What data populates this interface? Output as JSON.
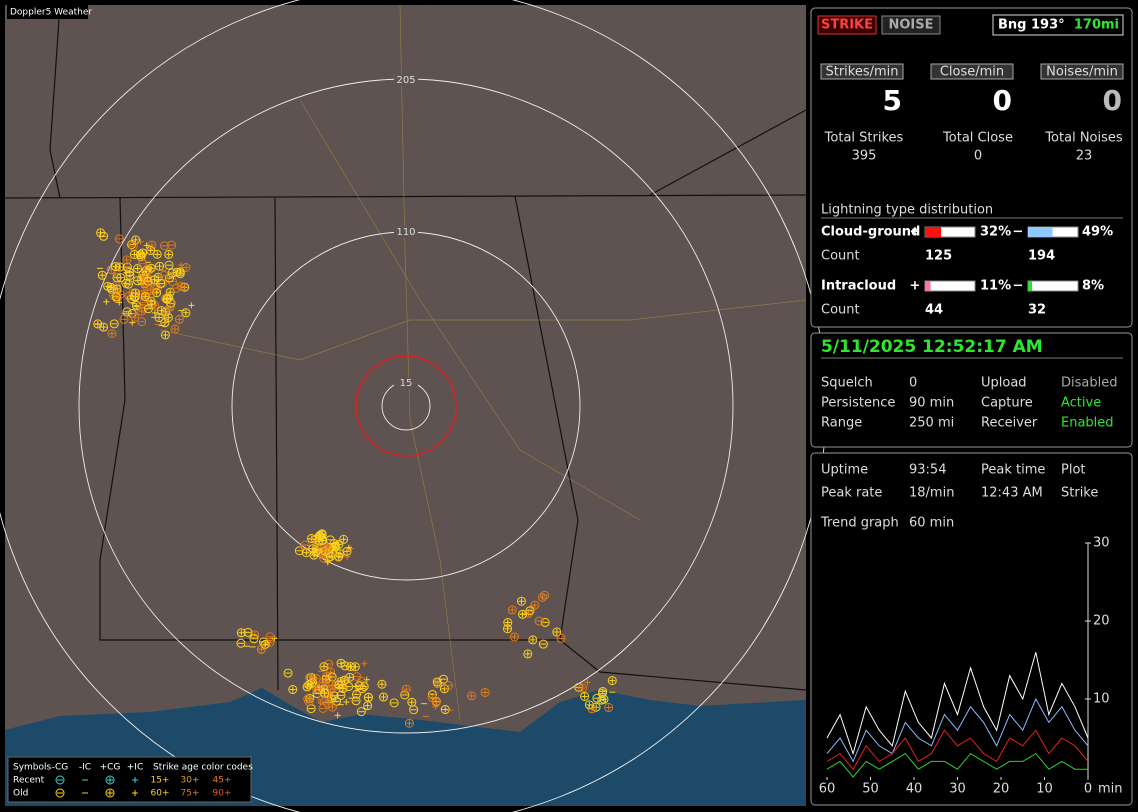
{
  "map": {
    "title": "Doppler5 Weather",
    "range_rings": [
      "205",
      "110",
      "15"
    ],
    "legend": {
      "symbols_label": "Symbols",
      "types": [
        "-CG",
        "-IC",
        "+CG",
        "+IC"
      ],
      "age_label": "Strike age color codes",
      "rows": [
        {
          "name": "Recent",
          "ages": [
            "15+",
            "30+",
            "45+"
          ]
        },
        {
          "name": "Old",
          "ages": [
            "60+",
            "75+",
            "90+"
          ]
        }
      ]
    }
  },
  "status": {
    "strike_button": "STRIKE",
    "noise_button": "NOISE",
    "bearing": "Bng 193°",
    "distance": "170mi",
    "rates": [
      {
        "label": "Strikes/min",
        "value": 5,
        "total_label": "Total Strikes",
        "total": 395
      },
      {
        "label": "Close/min",
        "value": 0,
        "total_label": "Total Close",
        "total": 0
      },
      {
        "label": "Noises/min",
        "value": 0,
        "total_label": "Total Noises",
        "total": 23
      }
    ],
    "distribution": {
      "title": "Lightning type distribution",
      "plus": "+",
      "minus": "−",
      "count_label": "Count",
      "rows": [
        {
          "name": "Cloud-ground",
          "pos": {
            "value": 32,
            "label": "32%"
          },
          "neg": {
            "value": 49,
            "label": "49%"
          },
          "pos_count": 125,
          "neg_count": 194
        },
        {
          "name": "Intracloud",
          "pos": {
            "value": 11,
            "label": "11%"
          },
          "neg": {
            "value": 8,
            "label": "8%"
          },
          "pos_count": 44,
          "neg_count": 32
        }
      ]
    }
  },
  "clock": {
    "datetime": "5/11/2025 12:52:17 AM",
    "settings": [
      {
        "label": "Squelch",
        "value": 0
      },
      {
        "label": "Persistence",
        "value": "90 min"
      },
      {
        "label": "Range",
        "value": "250 mi"
      }
    ],
    "states": [
      {
        "label": "Upload",
        "value": "Disabled"
      },
      {
        "label": "Capture",
        "value": "Active"
      },
      {
        "label": "Receiver",
        "value": "Enabled"
      }
    ]
  },
  "stats": {
    "uptime_label": "Uptime",
    "uptime": "93:54",
    "peak_time_label": "Peak time",
    "peak_time": "12:43 AM",
    "plot_label": "Plot",
    "peak_rate_label": "Peak rate",
    "peak_rate": "18/min",
    "plot": "Strike",
    "trend_label": "Trend graph",
    "trend_span": "60 min"
  },
  "trend": {
    "type": "line",
    "xlabel": "min",
    "xlim": [
      60,
      0
    ],
    "ylim": [
      0,
      30
    ],
    "yticks": [
      10,
      20,
      30
    ],
    "xticks": [
      60,
      50,
      40,
      30,
      20,
      10,
      0
    ],
    "x": [
      60,
      57,
      54,
      51,
      48,
      45,
      42,
      39,
      36,
      33,
      30,
      27,
      24,
      21,
      18,
      15,
      12,
      9,
      6,
      3,
      0
    ],
    "series": [
      {
        "color": "#ffffff",
        "values": [
          5,
          8,
          3,
          9,
          6,
          4,
          11,
          7,
          5,
          12,
          8,
          14,
          9,
          6,
          13,
          10,
          16,
          8,
          12,
          9,
          5
        ]
      },
      {
        "color": "#8fb8ff",
        "values": [
          3,
          5,
          2,
          6,
          4,
          3,
          7,
          5,
          4,
          8,
          6,
          9,
          7,
          4,
          8,
          6,
          10,
          7,
          9,
          6,
          4
        ]
      },
      {
        "color": "#e02020",
        "values": [
          2,
          3,
          1,
          4,
          2,
          3,
          5,
          2,
          3,
          6,
          4,
          5,
          3,
          2,
          5,
          4,
          6,
          3,
          5,
          4,
          2
        ]
      },
      {
        "color": "#30d030",
        "values": [
          1,
          2,
          0,
          2,
          1,
          2,
          3,
          1,
          2,
          2,
          1,
          3,
          2,
          1,
          2,
          2,
          3,
          1,
          2,
          1,
          1
        ]
      }
    ]
  }
}
